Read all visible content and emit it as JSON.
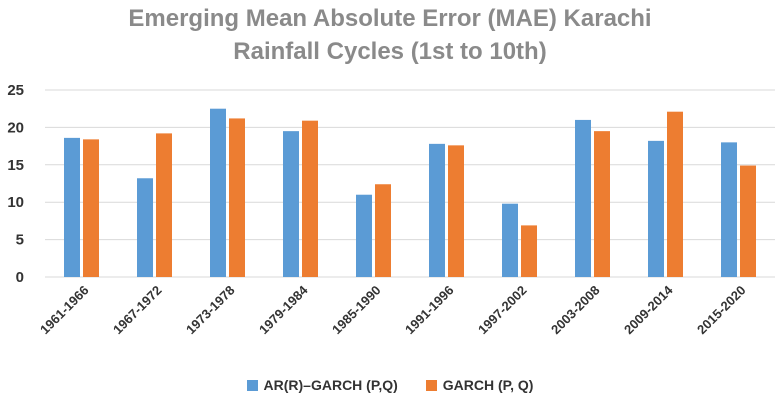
{
  "colors": {
    "series1": "#5b9bd5",
    "series2": "#ed7d31",
    "grid": "#d9d9d9",
    "axis_text": "#333333",
    "title": "#8a8a8a"
  },
  "chart_data": {
    "type": "bar",
    "title_line1": "Emerging Mean Absolute Error (MAE) Karachi",
    "title_line2": "Rainfall Cycles (1st to 10th)",
    "xlabel": "",
    "ylabel": "",
    "ylim": [
      0,
      25
    ],
    "yticks": [
      "0",
      "5",
      "10",
      "15",
      "20",
      "25"
    ],
    "grid": true,
    "legend_placement": "bottom",
    "categories": [
      "1961-1966",
      "1967-1972",
      "1973-1978",
      "1979-1984",
      "1985-1990",
      "1991-1996",
      "1997-2002",
      "2003-2008",
      "2009-2014",
      "2015-2020"
    ],
    "series": [
      {
        "name": "AR(R)–GARCH (P,Q)",
        "values": [
          18.6,
          13.2,
          22.5,
          19.5,
          11.0,
          17.8,
          9.8,
          21.0,
          18.2,
          18.0
        ]
      },
      {
        "name": "GARCH (P, Q)",
        "values": [
          18.4,
          19.2,
          21.2,
          20.9,
          12.4,
          17.6,
          6.9,
          19.5,
          22.1,
          14.9
        ]
      }
    ]
  }
}
